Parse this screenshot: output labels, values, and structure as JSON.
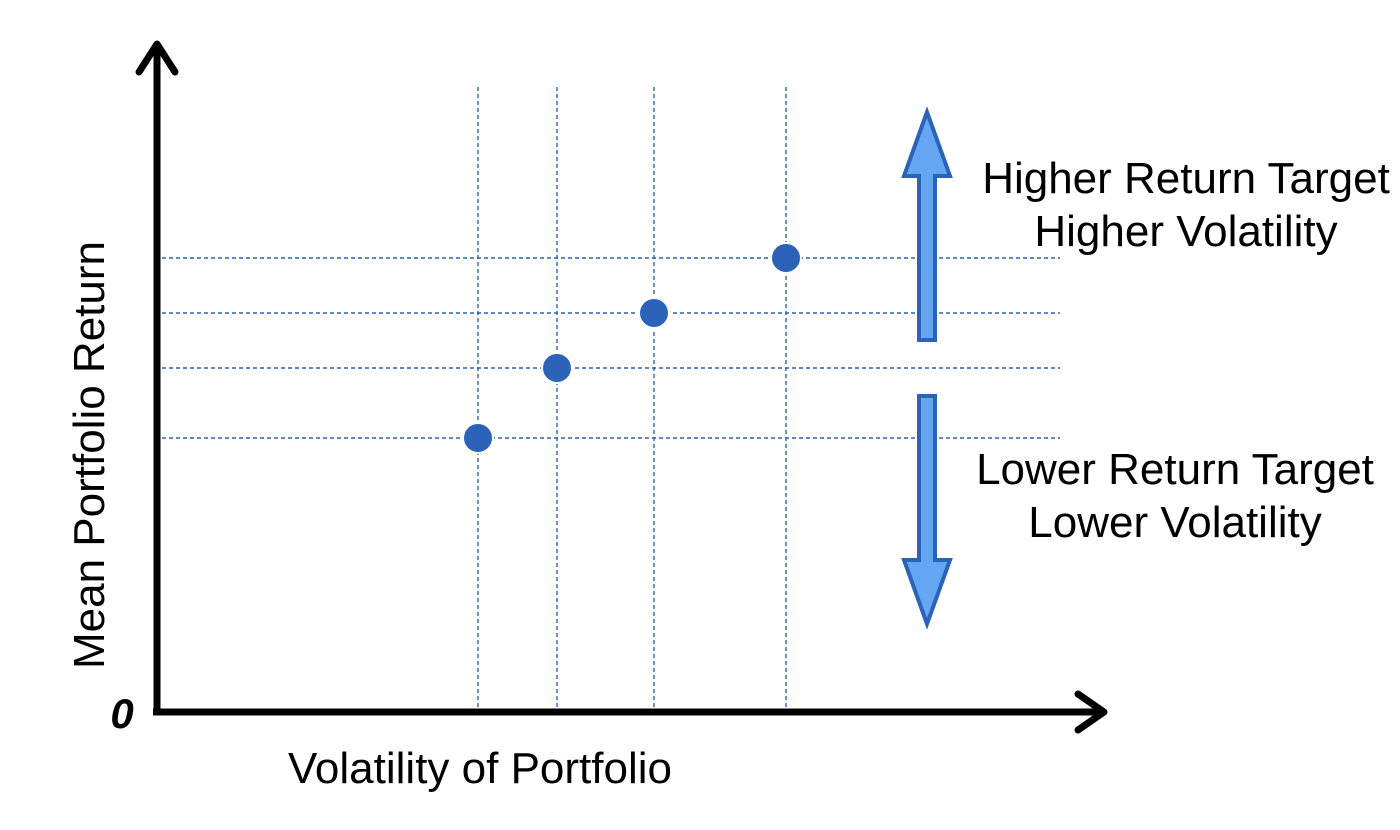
{
  "diagram": {
    "origin_label": "0",
    "x_axis_label": "Volatility of Portfolio",
    "y_axis_label": "Mean Portfolio Return",
    "up_annotation": {
      "line1": "Higher Return Target",
      "line2": "Higher Volatility"
    },
    "down_annotation": {
      "line1": "Lower Return Target",
      "line2": "Lower Volatility"
    },
    "colors": {
      "points": "#2a63b8",
      "guide_lines": "#2a63b8",
      "arrow_fill": "#64a6f2",
      "arrow_stroke": "#2a63b8",
      "axes": "#000000"
    },
    "points": [
      {
        "volatility": 1,
        "return": 1
      },
      {
        "volatility": 2,
        "return": 2
      },
      {
        "volatility": 3,
        "return": 3
      },
      {
        "volatility": 4,
        "return": 4
      }
    ]
  }
}
